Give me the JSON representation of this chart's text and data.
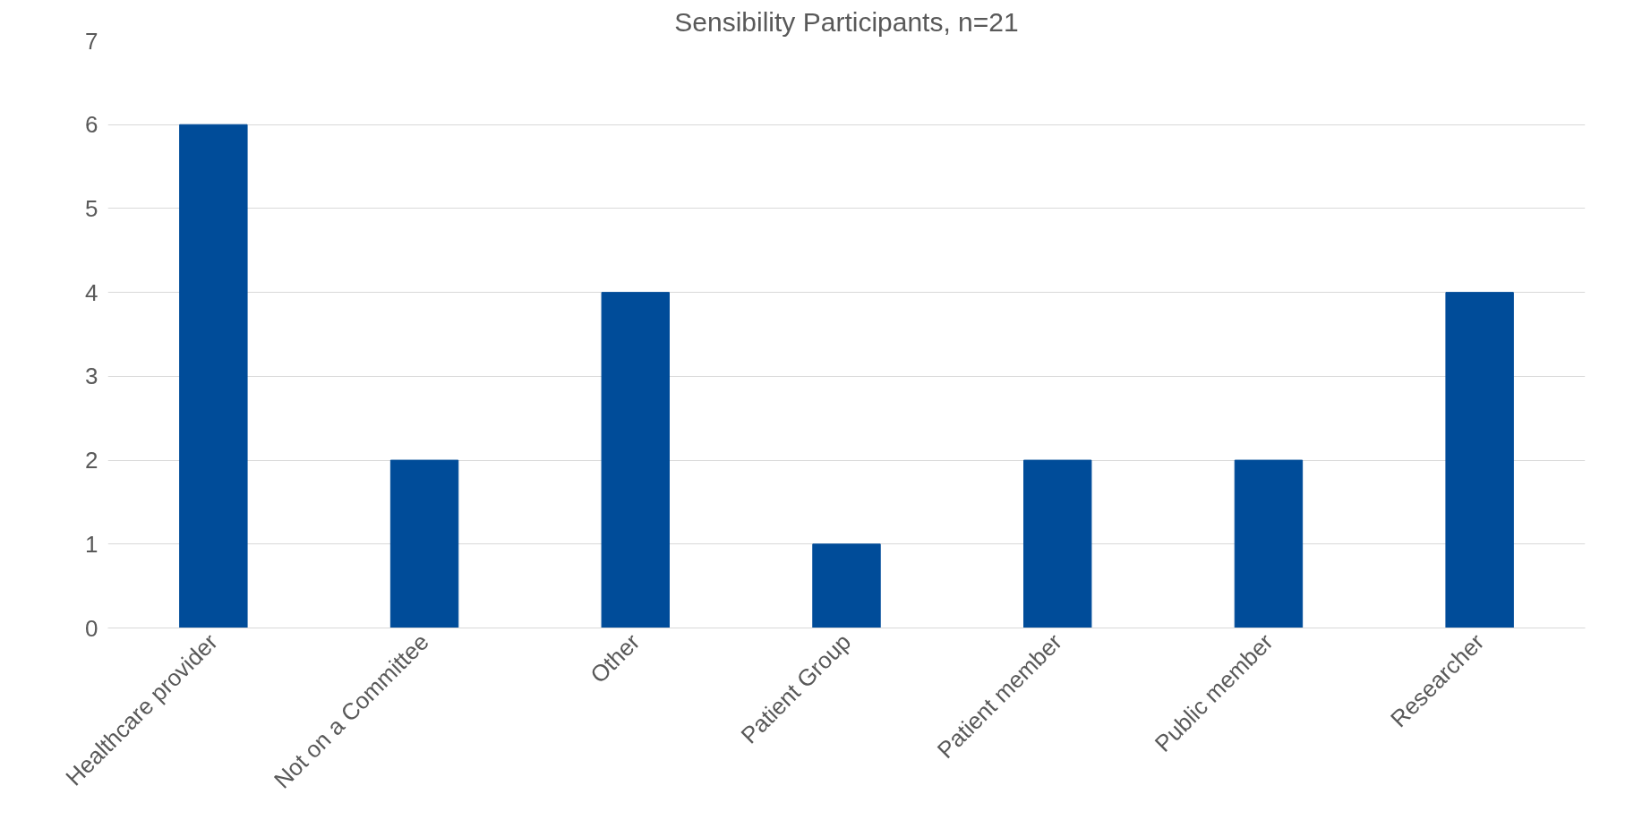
{
  "chart_data": {
    "type": "bar",
    "title": "Sensibility Participants, n=21",
    "categories": [
      "Healthcare provider",
      "Not on a Committee",
      "Other",
      "Patient Group",
      "Patient member",
      "Public member",
      "Researcher"
    ],
    "values": [
      6,
      2,
      4,
      1,
      2,
      2,
      4
    ],
    "color": "#004c99",
    "ylim": [
      0,
      7
    ],
    "yticks": [
      0,
      1,
      2,
      3,
      4,
      5,
      6,
      7
    ],
    "grid": "y"
  }
}
